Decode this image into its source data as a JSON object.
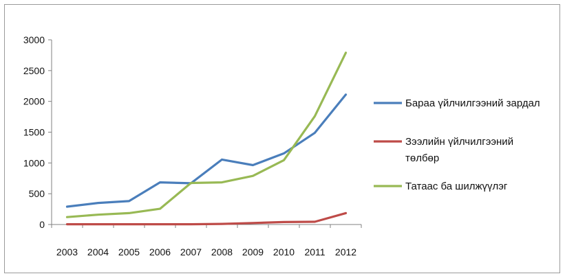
{
  "chart_data": {
    "type": "line",
    "title": "",
    "xlabel": "",
    "ylabel": "",
    "categories": [
      "2003",
      "2004",
      "2005",
      "2006",
      "2007",
      "2008",
      "2009",
      "2010",
      "2011",
      "2012"
    ],
    "ylim": [
      0,
      3000
    ],
    "yticks": [
      0,
      500,
      1000,
      1500,
      2000,
      2500,
      3000
    ],
    "grid": false,
    "legend_position": "right",
    "series": [
      {
        "name": "Бараа үйлчилгээний зардал",
        "color": "#4a7ebb",
        "values": [
          290,
          350,
          380,
          685,
          670,
          1055,
          965,
          1155,
          1490,
          2110
        ]
      },
      {
        "name": "Зээлийн үйлчилгээний төлбөр",
        "color": "#be4b48",
        "values": [
          5,
          5,
          5,
          5,
          5,
          10,
          25,
          40,
          45,
          185
        ]
      },
      {
        "name": "Татаас ба шилжүүлэг",
        "color": "#98b954",
        "values": [
          120,
          160,
          185,
          255,
          675,
          685,
          790,
          1045,
          1760,
          2790
        ]
      }
    ],
    "legend_labels": [
      [
        "Бараа үйлчилгээний зардал"
      ],
      [
        "Зээлийн үйлчилгээний",
        "төлбөр"
      ],
      [
        "Татаас ба шилжүүлэг"
      ]
    ]
  }
}
